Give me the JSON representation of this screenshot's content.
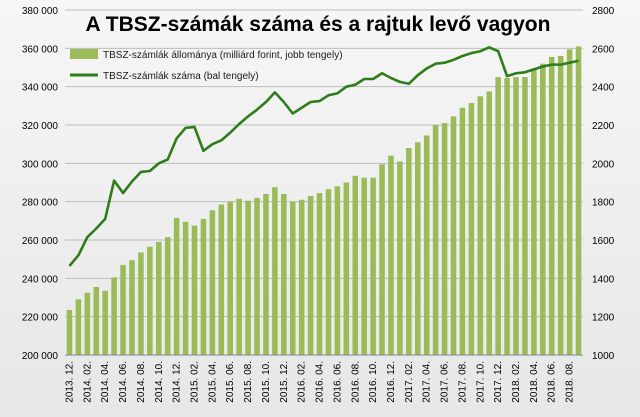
{
  "chart_data": {
    "type": "bar+line",
    "title": "A TBSZ-számák száma és a rajtuk levő vagyon",
    "colors": {
      "bars": "#9bbb59",
      "line": "#2e7d1a",
      "grid": "#bdbdbd",
      "background": "#efefef"
    },
    "x_tick_labels": [
      "2013. 12.",
      "2014. 02.",
      "2014. 04.",
      "2014. 06.",
      "2014. 08.",
      "2014. 10.",
      "2014. 12.",
      "2015. 02.",
      "2015. 04.",
      "2015. 06.",
      "2015. 08.",
      "2015. 10.",
      "2015. 12.",
      "2016. 02.",
      "2016. 04.",
      "2016. 06.",
      "2016. 08.",
      "2016. 10.",
      "2016. 12.",
      "2017. 02.",
      "2017. 04.",
      "2017. 06.",
      "2017. 08.",
      "2017. 10.",
      "2017. 12.",
      "2018. 02.",
      "2018. 04.",
      "2018. 06.",
      "2018. 08."
    ],
    "y_left": {
      "range": [
        200000,
        380000
      ],
      "step": 20000,
      "tick_labels": [
        "200 000",
        "220 000",
        "240 000",
        "260 000",
        "280 000",
        "300 000",
        "320 000",
        "340 000",
        "360 000",
        "380 000"
      ]
    },
    "y_right": {
      "range": [
        1000,
        2800
      ],
      "step": 200,
      "tick_labels": [
        "1000",
        "1200",
        "1400",
        "1600",
        "1800",
        "2000",
        "2200",
        "2400",
        "2600",
        "2800"
      ]
    },
    "legend": {
      "position": "top-left",
      "entries": [
        "TBSZ-számlák állománya (milliárd forint, jobb tengely)",
        "TBSZ-számlák száma (bal tengely)"
      ]
    },
    "series": [
      {
        "name": "TBSZ-számlák állománya (milliárd forint, jobb tengely)",
        "type": "bar",
        "axis": "right",
        "values": [
          1235,
          1290,
          1325,
          1355,
          1335,
          1405,
          1470,
          1495,
          1535,
          1565,
          1590,
          1615,
          1715,
          1695,
          1675,
          1710,
          1755,
          1785,
          1800,
          1815,
          1805,
          1820,
          1840,
          1875,
          1840,
          1800,
          1810,
          1830,
          1845,
          1865,
          1880,
          1900,
          1935,
          1925,
          1925,
          1995,
          2040,
          2010,
          2080,
          2110,
          2145,
          2200,
          2210,
          2245,
          2290,
          2315,
          2350,
          2375,
          2450,
          2445,
          2450,
          2450,
          2495,
          2520,
          2555,
          2560,
          2595,
          2610
        ]
      },
      {
        "name": "TBSZ-számlák száma (bal tengely)",
        "type": "line",
        "axis": "left",
        "values": [
          246500,
          252000,
          261500,
          266000,
          271000,
          291000,
          284500,
          290500,
          295500,
          296000,
          300000,
          302000,
          313000,
          318500,
          319000,
          306500,
          310000,
          312000,
          316000,
          320500,
          324500,
          328000,
          332000,
          337000,
          332000,
          326000,
          329000,
          332000,
          332500,
          335500,
          336500,
          340000,
          341000,
          344000,
          344000,
          347000,
          344500,
          342500,
          341500,
          346000,
          349500,
          352000,
          352500,
          354000,
          356000,
          357500,
          358500,
          360500,
          358500,
          345500,
          347000,
          347500,
          349000,
          350500,
          351500,
          351500,
          352500,
          353500
        ]
      }
    ]
  }
}
